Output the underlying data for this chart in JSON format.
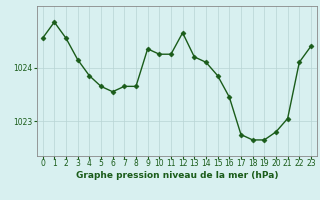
{
  "x": [
    0,
    1,
    2,
    3,
    4,
    5,
    6,
    7,
    8,
    9,
    10,
    11,
    12,
    13,
    14,
    15,
    16,
    17,
    18,
    19,
    20,
    21,
    22,
    23
  ],
  "y": [
    1024.55,
    1024.85,
    1024.55,
    1024.15,
    1023.85,
    1023.65,
    1023.55,
    1023.65,
    1023.65,
    1024.35,
    1024.25,
    1024.25,
    1024.65,
    1024.2,
    1024.1,
    1023.85,
    1023.45,
    1022.75,
    1022.65,
    1022.65,
    1022.8,
    1023.05,
    1024.1,
    1024.4
  ],
  "line_color": "#1a5c1a",
  "marker": "D",
  "markersize": 2.5,
  "linewidth": 1.0,
  "bg_color": "#d8f0f0",
  "grid_color": "#b8d4d4",
  "xlabel": "Graphe pression niveau de la mer (hPa)",
  "xlabel_fontsize": 6.5,
  "xlabel_color": "#1a5c1a",
  "ytick_labels": [
    "1023",
    "1024"
  ],
  "ytick_values": [
    1023.0,
    1024.0
  ],
  "ylim": [
    1022.35,
    1025.15
  ],
  "xlim": [
    -0.5,
    23.5
  ],
  "tick_color": "#1a5c1a",
  "tick_fontsize": 5.5,
  "spine_color": "#888888"
}
